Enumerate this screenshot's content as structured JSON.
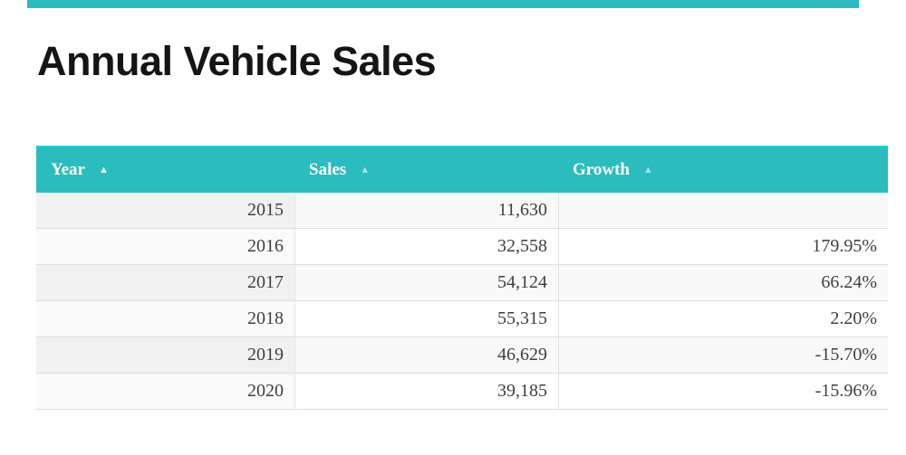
{
  "page": {
    "title": "Annual Vehicle Sales",
    "accent_color": "#2bbcbd"
  },
  "icons": {
    "sort_asc": "▲"
  },
  "table": {
    "columns": [
      {
        "label": "Year",
        "sort_direction": "ascending",
        "sort_active": true
      },
      {
        "label": "Sales",
        "sort_direction": "ascending",
        "sort_active": false
      },
      {
        "label": "Growth",
        "sort_direction": "ascending",
        "sort_active": false
      }
    ],
    "rows": [
      {
        "year": "2015",
        "sales": "11,630",
        "growth": ""
      },
      {
        "year": "2016",
        "sales": "32,558",
        "growth": "179.95%"
      },
      {
        "year": "2017",
        "sales": "54,124",
        "growth": "66.24%"
      },
      {
        "year": "2018",
        "sales": "55,315",
        "growth": "2.20%"
      },
      {
        "year": "2019",
        "sales": "46,629",
        "growth": "-15.70%"
      },
      {
        "year": "2020",
        "sales": "39,185",
        "growth": "-15.96%"
      }
    ]
  },
  "chart_data": {
    "type": "table",
    "title": "Annual Vehicle Sales",
    "categories": [
      "2015",
      "2016",
      "2017",
      "2018",
      "2019",
      "2020"
    ],
    "series": [
      {
        "name": "Sales",
        "values": [
          11630,
          32558,
          54124,
          55315,
          46629,
          39185
        ]
      },
      {
        "name": "Growth (%)",
        "values": [
          null,
          179.95,
          66.24,
          2.2,
          -15.7,
          -15.96
        ]
      }
    ]
  }
}
